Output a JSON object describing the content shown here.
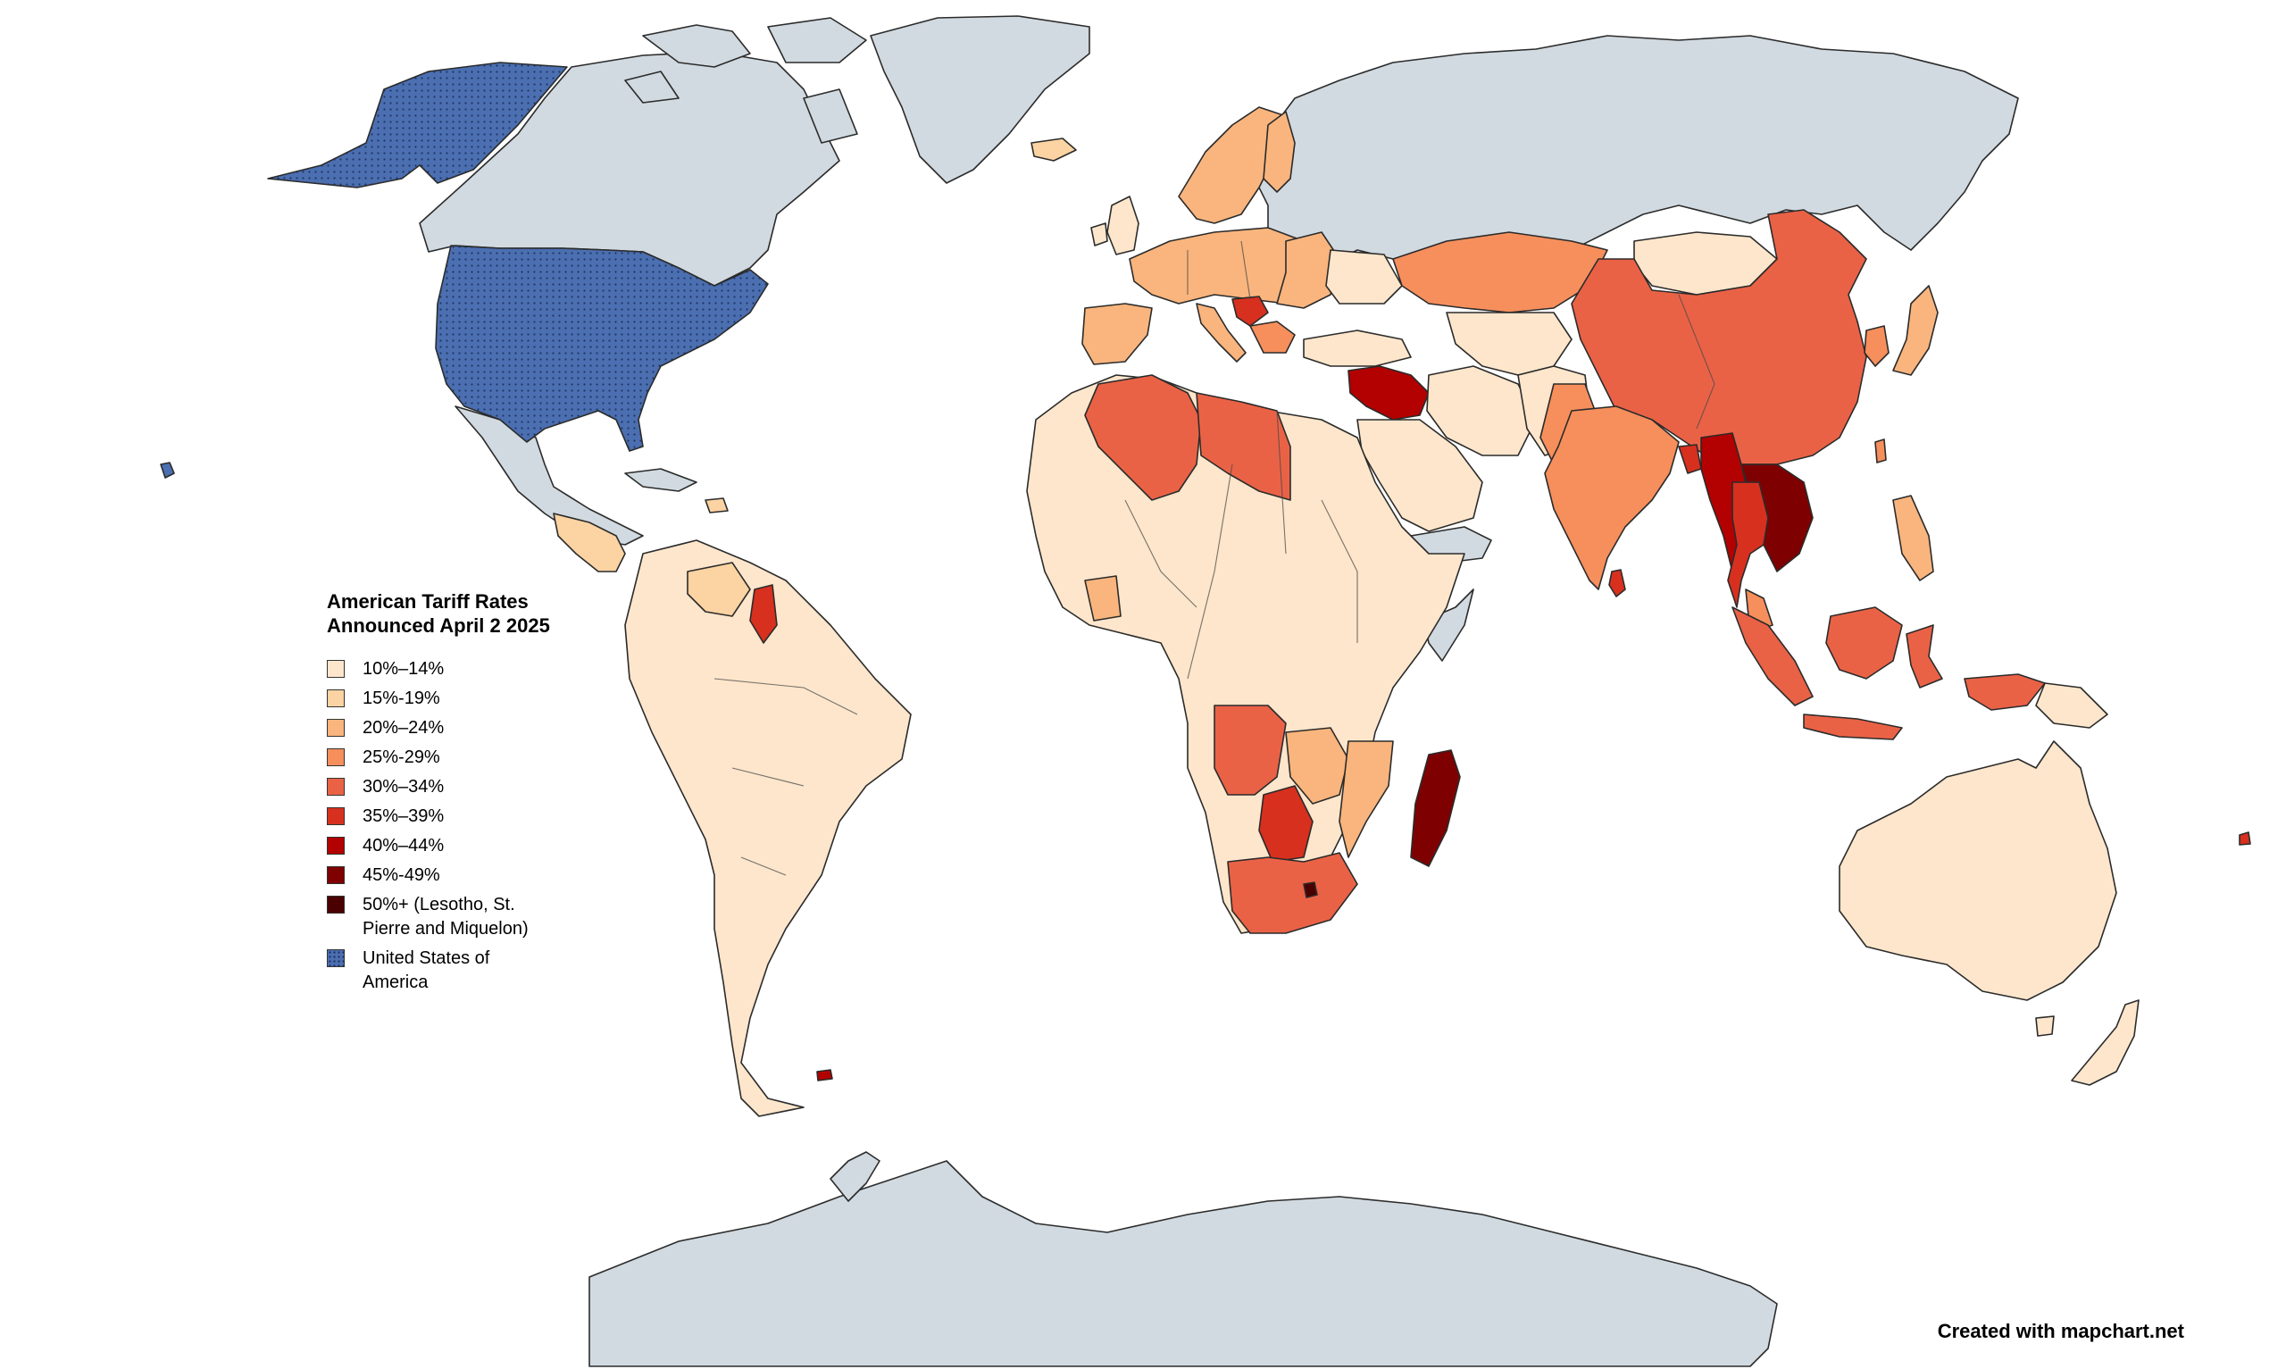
{
  "legend": {
    "title_line1": "American Tariff Rates",
    "title_line2": "Announced April 2 2025",
    "items": [
      {
        "label": "10%–14%",
        "color": "#fde6cb"
      },
      {
        "label": "15%-19%",
        "color": "#fcd3a2"
      },
      {
        "label": "20%–24%",
        "color": "#f9b57d"
      },
      {
        "label": "25%-29%",
        "color": "#f68f5c"
      },
      {
        "label": "30%–34%",
        "color": "#ea6246"
      },
      {
        "label": "35%–39%",
        "color": "#d7301f"
      },
      {
        "label": "40%–44%",
        "color": "#b30000"
      },
      {
        "label": "45%-49%",
        "color": "#7f0000"
      },
      {
        "label": "50%+ (Lesotho, St.\nPierre and Miquelon)",
        "color": "#4a0000"
      },
      {
        "label": "United States of\nAmerica",
        "color": "#4b6fb0",
        "pattern": "dotted"
      }
    ]
  },
  "credit": "Created with mapchart.net",
  "colors": {
    "no_data": "#d1dae0",
    "background": "#ffffff",
    "usa": "#4b6fb0"
  }
}
